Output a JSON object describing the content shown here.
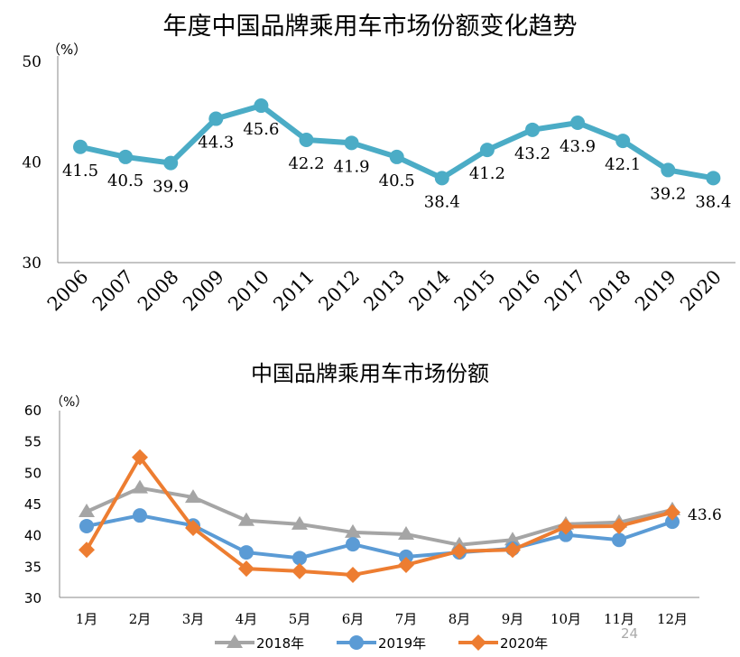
{
  "chart_data": [
    {
      "type": "line",
      "title": "年度中国品牌乘用车市场份额变化趋势",
      "unit_label": "（%）",
      "categories": [
        "2006",
        "2007",
        "2008",
        "2009",
        "2010",
        "2011",
        "2012",
        "2013",
        "2014",
        "2015",
        "2016",
        "2017",
        "2018",
        "2019",
        "2020"
      ],
      "values": [
        41.5,
        40.5,
        39.9,
        44.3,
        45.6,
        42.2,
        41.9,
        40.5,
        38.4,
        41.2,
        43.2,
        43.9,
        42.1,
        39.2,
        38.4
      ],
      "data_labels": [
        "41.5",
        "40.5",
        "39.9",
        "44.3",
        "45.6",
        "42.2",
        "41.9",
        "40.5",
        "38.4",
        "41.2",
        "43.2",
        "43.9",
        "42.1",
        "39.2",
        "38.4"
      ],
      "ylim": [
        30,
        50
      ],
      "yticks": [
        "30",
        "40",
        "50"
      ],
      "color": "#4BACC6",
      "grid": false
    },
    {
      "type": "line",
      "title": "中国品牌乘用车市场份额",
      "unit_label": "（%）",
      "categories": [
        "1月",
        "2月",
        "3月",
        "4月",
        "5月",
        "6月",
        "7月",
        "8月",
        "9月",
        "10月",
        "11月",
        "12月"
      ],
      "series": [
        {
          "name": "2018年",
          "color": "#A5A5A5",
          "marker": "triangle",
          "values": [
            43.7,
            47.5,
            46.0,
            42.3,
            41.7,
            40.4,
            40.1,
            38.4,
            39.2,
            41.7,
            42.0,
            44.0
          ]
        },
        {
          "name": "2019年",
          "color": "#5B9BD5",
          "marker": "circle",
          "values": [
            41.4,
            43.1,
            41.5,
            37.2,
            36.3,
            38.5,
            36.5,
            37.2,
            37.8,
            40.0,
            39.2,
            42.1
          ]
        },
        {
          "name": "2020年",
          "color": "#ED7D31",
          "marker": "diamond",
          "values": [
            37.6,
            52.4,
            41.1,
            34.6,
            34.2,
            33.6,
            35.2,
            37.4,
            37.6,
            41.3,
            41.4,
            43.6
          ]
        }
      ],
      "end_label": "43.6",
      "ylim": [
        30,
        60
      ],
      "yticks": [
        "30",
        "35",
        "40",
        "45",
        "50",
        "55",
        "60"
      ],
      "legend": "bottom",
      "grid": false
    }
  ],
  "page_number": "24"
}
